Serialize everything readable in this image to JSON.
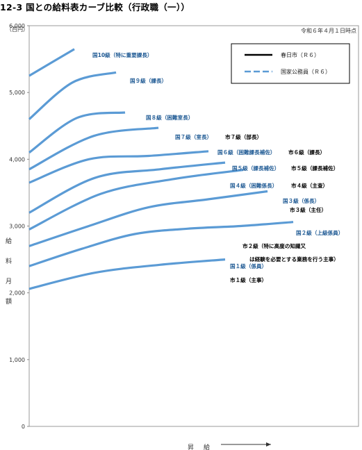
{
  "page": {
    "title": "12-3 国との給料表カーブ比較（行政職（一））"
  },
  "chart_data": {
    "type": "line",
    "note": "令和６年４月１日時点",
    "y_unit": "（百円）",
    "ylabel": "給料月額",
    "xlabel": "昇給",
    "ylim": [
      0,
      6000
    ],
    "y_ticks": [
      "0",
      "1,000",
      "2,000",
      "3,000",
      "4,000",
      "5,000",
      "6,000"
    ],
    "legend": {
      "position": "top-right",
      "entries": [
        {
          "label": "春日市（Ｒ６）",
          "style": "solid",
          "color": "#000000"
        },
        {
          "label": "国家公務員（Ｒ６）",
          "style": "dashed",
          "color": "#5b9bd5"
        }
      ]
    },
    "series": [
      {
        "name": "市１級（主事）",
        "group": "city",
        "x": [
          0,
          10,
          20,
          30
        ],
        "y": [
          2060,
          2300,
          2420,
          2500
        ]
      },
      {
        "name": "国１級（係員）",
        "group": "national",
        "x": [
          0,
          10,
          20,
          30
        ],
        "y": [
          2060,
          2300,
          2420,
          2500
        ]
      },
      {
        "name": "市２級（特に高度の知識又は経験を必要とする業務を行う主事）",
        "group": "city",
        "x": [
          0,
          10,
          20,
          30,
          40,
          50
        ],
        "y": [
          2400,
          2660,
          2880,
          2960,
          3000,
          3060
        ]
      },
      {
        "name": "国２級（上級係員）",
        "group": "national",
        "x": [
          0,
          10,
          20,
          30,
          40,
          50
        ],
        "y": [
          2400,
          2660,
          2880,
          2960,
          3000,
          3060
        ]
      },
      {
        "name": "市３級（主任）",
        "group": "city",
        "x": [
          0,
          10,
          20,
          30,
          40
        ],
        "y": [
          2700,
          3000,
          3280,
          3400,
          3520
        ]
      },
      {
        "name": "国３級（係長）",
        "group": "national",
        "x": [
          0,
          10,
          20,
          30,
          40
        ],
        "y": [
          2700,
          3000,
          3280,
          3400,
          3520
        ]
      },
      {
        "name": "市４級（主査）",
        "group": "city",
        "x": [
          0,
          10,
          20,
          30
        ],
        "y": [
          2950,
          3480,
          3700,
          3840
        ]
      },
      {
        "name": "国４級（困難係長）",
        "group": "national",
        "x": [
          0,
          10,
          20,
          30
        ],
        "y": [
          2950,
          3480,
          3700,
          3840
        ]
      },
      {
        "name": "市５級（課長補佐）",
        "group": "city",
        "x": [
          0,
          10,
          20,
          30
        ],
        "y": [
          3200,
          3720,
          3850,
          3950
        ]
      },
      {
        "name": "国５級（課長補佐）",
        "group": "national",
        "x": [
          0,
          10,
          20,
          30
        ],
        "y": [
          3200,
          3720,
          3850,
          3950
        ]
      },
      {
        "name": "市６級（課長）",
        "group": "city",
        "x": [
          0,
          10,
          20,
          30
        ],
        "y": [
          3650,
          4000,
          4050,
          4120
        ]
      },
      {
        "name": "国６級（困難課長補佐）",
        "group": "national",
        "x": [
          0,
          10,
          20,
          30
        ],
        "y": [
          3650,
          4000,
          4050,
          4120
        ]
      },
      {
        "name": "市７級（部長）",
        "group": "city",
        "x": [
          0,
          10,
          20
        ],
        "y": [
          3850,
          4350,
          4470
        ]
      },
      {
        "name": "国７級（室長）",
        "group": "national",
        "x": [
          0,
          10,
          20
        ],
        "y": [
          3850,
          4350,
          4470
        ]
      },
      {
        "name": "国８級（困難室長）",
        "group": "national",
        "x": [
          0,
          10,
          20
        ],
        "y": [
          4100,
          4620,
          4700
        ]
      },
      {
        "name": "国９級（課長）",
        "group": "national",
        "x": [
          0,
          10,
          20
        ],
        "y": [
          4600,
          5150,
          5300
        ]
      },
      {
        "name": "国10級（特に重要課長）",
        "group": "national",
        "x": [
          0,
          10
        ],
        "y": [
          5250,
          5650
        ]
      }
    ]
  }
}
